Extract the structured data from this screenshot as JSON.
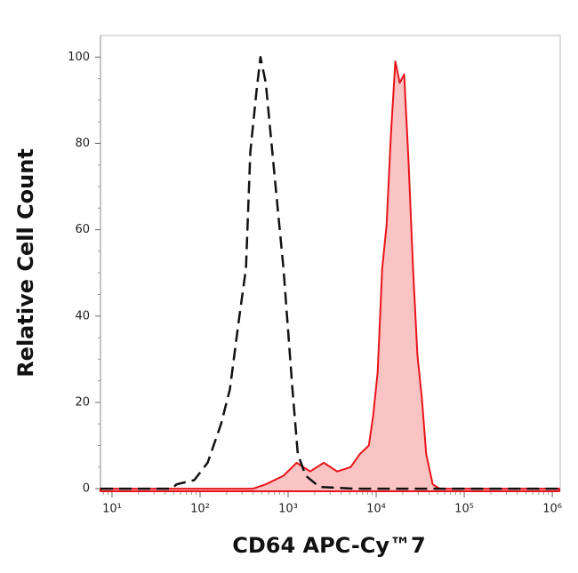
{
  "chart_data": {
    "type": "histogram-overlay",
    "xlabel": "CD64 APC-Cy™7",
    "ylabel": "Relative Cell Count",
    "xscale": "log",
    "xlim": [
      7.4,
      1230000
    ],
    "ylim": [
      -0.6,
      105
    ],
    "xticks": [
      {
        "value": 10,
        "label": "10¹"
      },
      {
        "value": 100,
        "label": "10²"
      },
      {
        "value": 1000,
        "label": "10³"
      },
      {
        "value": 10000,
        "label": "10⁴"
      },
      {
        "value": 100000,
        "label": "10⁵"
      },
      {
        "value": 1000000,
        "label": "10⁶"
      }
    ],
    "yticks": [
      0,
      20,
      40,
      60,
      80,
      100
    ],
    "series": [
      {
        "color": "#111111",
        "style": "dashed",
        "fill": false,
        "x": [
          7.4,
          48,
          54,
          86,
          122,
          173,
          218,
          276,
          332,
          372,
          437,
          485,
          558,
          705,
          886,
          1120,
          1287,
          1585,
          2270,
          5750,
          1200000
        ],
        "values": [
          0,
          0,
          1,
          2,
          6,
          15,
          23,
          39,
          51,
          78,
          92,
          100,
          94,
          72,
          51,
          23,
          8,
          3,
          0.4,
          0,
          0
        ]
      },
      {
        "color": "#e8141b",
        "style": "solid",
        "fill": true,
        "fill_color": "#fbc4c4",
        "x": [
          7.4,
          400,
          558,
          886,
          1250,
          1780,
          2540,
          3610,
          5130,
          6510,
          8260,
          9260,
          10400,
          11700,
          13100,
          14700,
          16500,
          18500,
          20800,
          23300,
          26200,
          29400,
          33000,
          37000,
          43800,
          52600,
          1200000
        ],
        "values": [
          0,
          0,
          1,
          3,
          6,
          4,
          6,
          4,
          5,
          8,
          10,
          17,
          27,
          51,
          61,
          82,
          99,
          94,
          96,
          76,
          51,
          31,
          21,
          8,
          1,
          0,
          0
        ]
      }
    ]
  }
}
